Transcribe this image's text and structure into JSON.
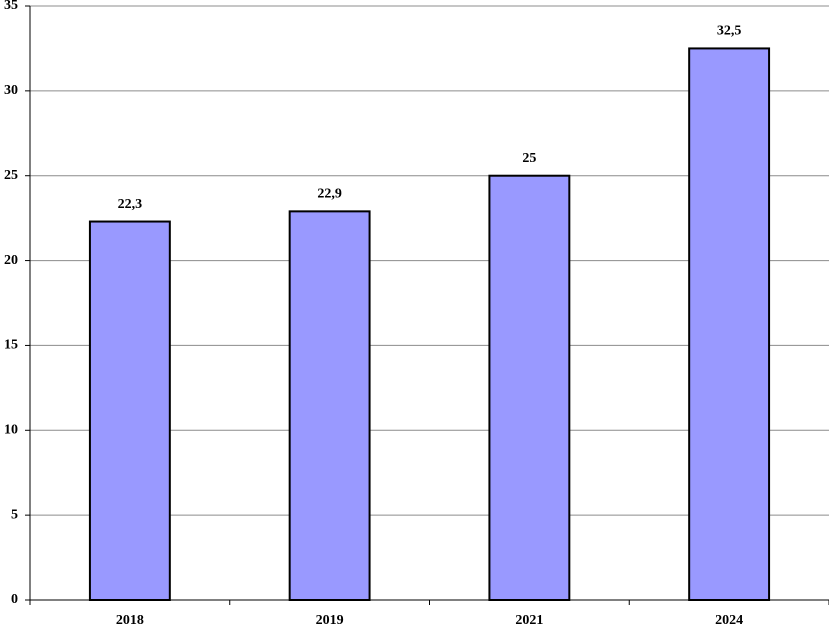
{
  "chart_data": {
    "type": "bar",
    "categories": [
      "2018",
      "2019",
      "2021",
      "2024"
    ],
    "values": [
      22.3,
      22.9,
      25,
      32.5
    ],
    "value_labels": [
      "22,3",
      "22,9",
      "25",
      "32,5"
    ],
    "color": "#9999ff",
    "ylim": [
      0,
      35
    ],
    "yticks": [
      0,
      5,
      10,
      15,
      20,
      25,
      30,
      35
    ],
    "grid": true
  }
}
